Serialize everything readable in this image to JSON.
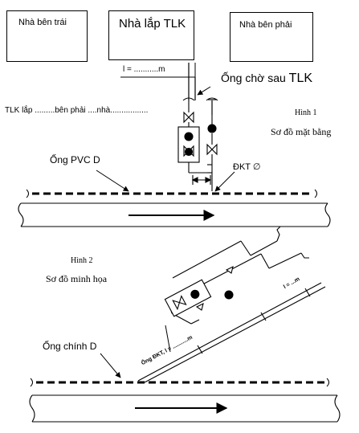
{
  "houses": {
    "left": "Nhà bên trái",
    "center": "Nhà lắp TLK",
    "right": "Nhà bên phải"
  },
  "figure1": {
    "length_label": "l = ...........m",
    "pipe_after_meter": "Ống chờ sau",
    "pipe_after_meter_tlk": "TLK",
    "meter_install_note": "TLK lắp .........bên phải ....nhà.................",
    "fig_number": "Hình 1",
    "fig_title": "Sơ đồ mặt bằng",
    "pvc_pipe_label": "Ống PVC D",
    "dkt_label": "ĐKT ∅"
  },
  "figure2": {
    "fig_number": "Hình 2",
    "fig_title": "Sơ đồ minh họa",
    "main_pipe_label": "Ống chính D",
    "branch_pipe_label": "Ống ĐKT, l = ...........m",
    "length_label": "l = ...m"
  }
}
